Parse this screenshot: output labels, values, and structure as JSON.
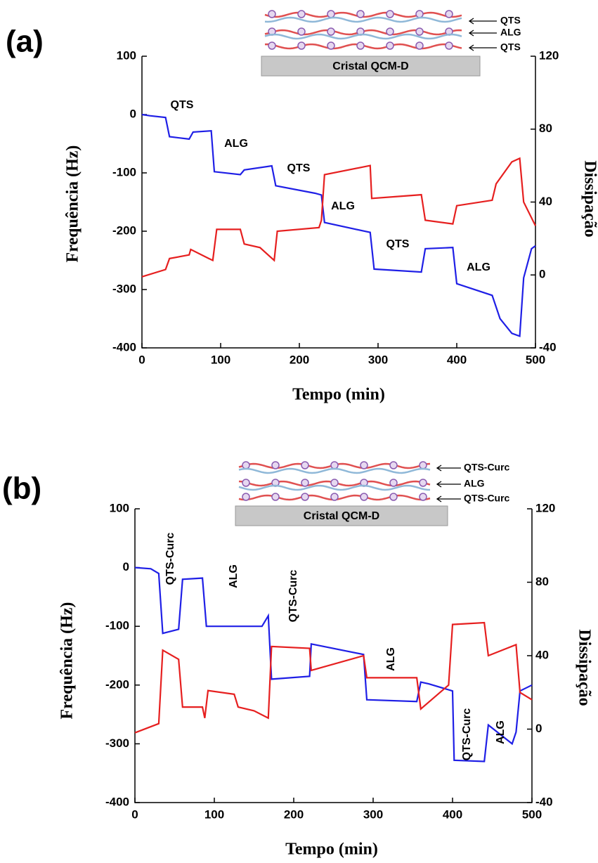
{
  "chart_data": [
    {
      "type": "line",
      "panel_label": "(a)",
      "x_label": "Tempo (min)",
      "y_label": "Frequência (Hz)",
      "y2_label": "Dissipação",
      "xlim": [
        0,
        500
      ],
      "xticks": [
        0,
        100,
        200,
        300,
        400,
        500
      ],
      "ylim": [
        -400,
        100
      ],
      "yticks": [
        -400,
        -300,
        -200,
        -100,
        0,
        100
      ],
      "y2lim": [
        -40,
        120
      ],
      "y2ticks": [
        -40,
        0,
        40,
        80,
        120
      ],
      "annotations": [
        "QTS",
        "ALG",
        "QTS",
        "ALG",
        "QTS",
        "ALG"
      ],
      "inset": {
        "substrate": "Cristal QCM-D",
        "layers": [
          "QTS",
          "ALG",
          "QTS"
        ]
      },
      "series": [
        {
          "color": "#1f1fe6",
          "axis": "y",
          "x": [
            0,
            10,
            30,
            35,
            60,
            65,
            88,
            92,
            125,
            130,
            165,
            170,
            220,
            228,
            232,
            290,
            295,
            355,
            360,
            395,
            400,
            445,
            455,
            470,
            480,
            485,
            495,
            500
          ],
          "values": [
            0,
            -2,
            -5,
            -38,
            -42,
            -30,
            -28,
            -98,
            -103,
            -95,
            -88,
            -122,
            -135,
            -138,
            -185,
            -202,
            -265,
            -270,
            -230,
            -228,
            -290,
            -310,
            -350,
            -375,
            -380,
            -280,
            -230,
            -225
          ]
        },
        {
          "color": "#e61f1f",
          "axis": "y2",
          "x": [
            0,
            30,
            35,
            60,
            62,
            85,
            90,
            95,
            125,
            130,
            150,
            168,
            172,
            225,
            228,
            232,
            290,
            292,
            355,
            360,
            395,
            400,
            445,
            450,
            470,
            480,
            485,
            500
          ],
          "values": [
            -1,
            3,
            9,
            11,
            14,
            9,
            8,
            25,
            25,
            17,
            15,
            8,
            24,
            26,
            30,
            55,
            60,
            42,
            44,
            30,
            28,
            38,
            41,
            50,
            62,
            64,
            40,
            27
          ]
        }
      ]
    },
    {
      "type": "line",
      "panel_label": "(b)",
      "x_label": "Tempo (min)",
      "y_label": "Frequência (Hz)",
      "y2_label": "Dissipação",
      "xlim": [
        0,
        500
      ],
      "xticks": [
        0,
        100,
        200,
        300,
        400,
        500
      ],
      "ylim": [
        -400,
        100
      ],
      "yticks": [
        -400,
        -300,
        -200,
        -100,
        0,
        100
      ],
      "y2lim": [
        -40,
        120
      ],
      "y2ticks": [
        -40,
        0,
        40,
        80,
        120
      ],
      "annotations": [
        "QTS-Curc",
        "ALG",
        "QTS-Curc",
        "ALG",
        "QTS-Curc",
        "ALG"
      ],
      "inset": {
        "substrate": "Cristal QCM-D",
        "layers": [
          "QTS-Curc",
          "ALG",
          "QTS-Curc"
        ]
      },
      "series": [
        {
          "color": "#1f1fe6",
          "axis": "y",
          "x": [
            0,
            20,
            30,
            35,
            55,
            60,
            85,
            90,
            160,
            168,
            172,
            220,
            222,
            288,
            292,
            355,
            360,
            370,
            400,
            402,
            440,
            445,
            475,
            480,
            485,
            500
          ],
          "values": [
            0,
            -2,
            -10,
            -112,
            -105,
            -20,
            -18,
            -100,
            -100,
            -82,
            -190,
            -185,
            -130,
            -148,
            -225,
            -228,
            -195,
            -198,
            -210,
            -328,
            -330,
            -268,
            -300,
            -280,
            -210,
            -200
          ]
        },
        {
          "color": "#e61f1f",
          "axis": "y2",
          "x": [
            0,
            30,
            35,
            55,
            60,
            85,
            88,
            92,
            125,
            130,
            150,
            168,
            172,
            220,
            222,
            288,
            292,
            355,
            360,
            395,
            400,
            440,
            445,
            480,
            485,
            500
          ],
          "values": [
            -2,
            3,
            43,
            38,
            12,
            12,
            6,
            21,
            19,
            12,
            10,
            6,
            45,
            44,
            32,
            40,
            28,
            28,
            11,
            24,
            57,
            58,
            40,
            46,
            20,
            16
          ]
        }
      ]
    }
  ]
}
